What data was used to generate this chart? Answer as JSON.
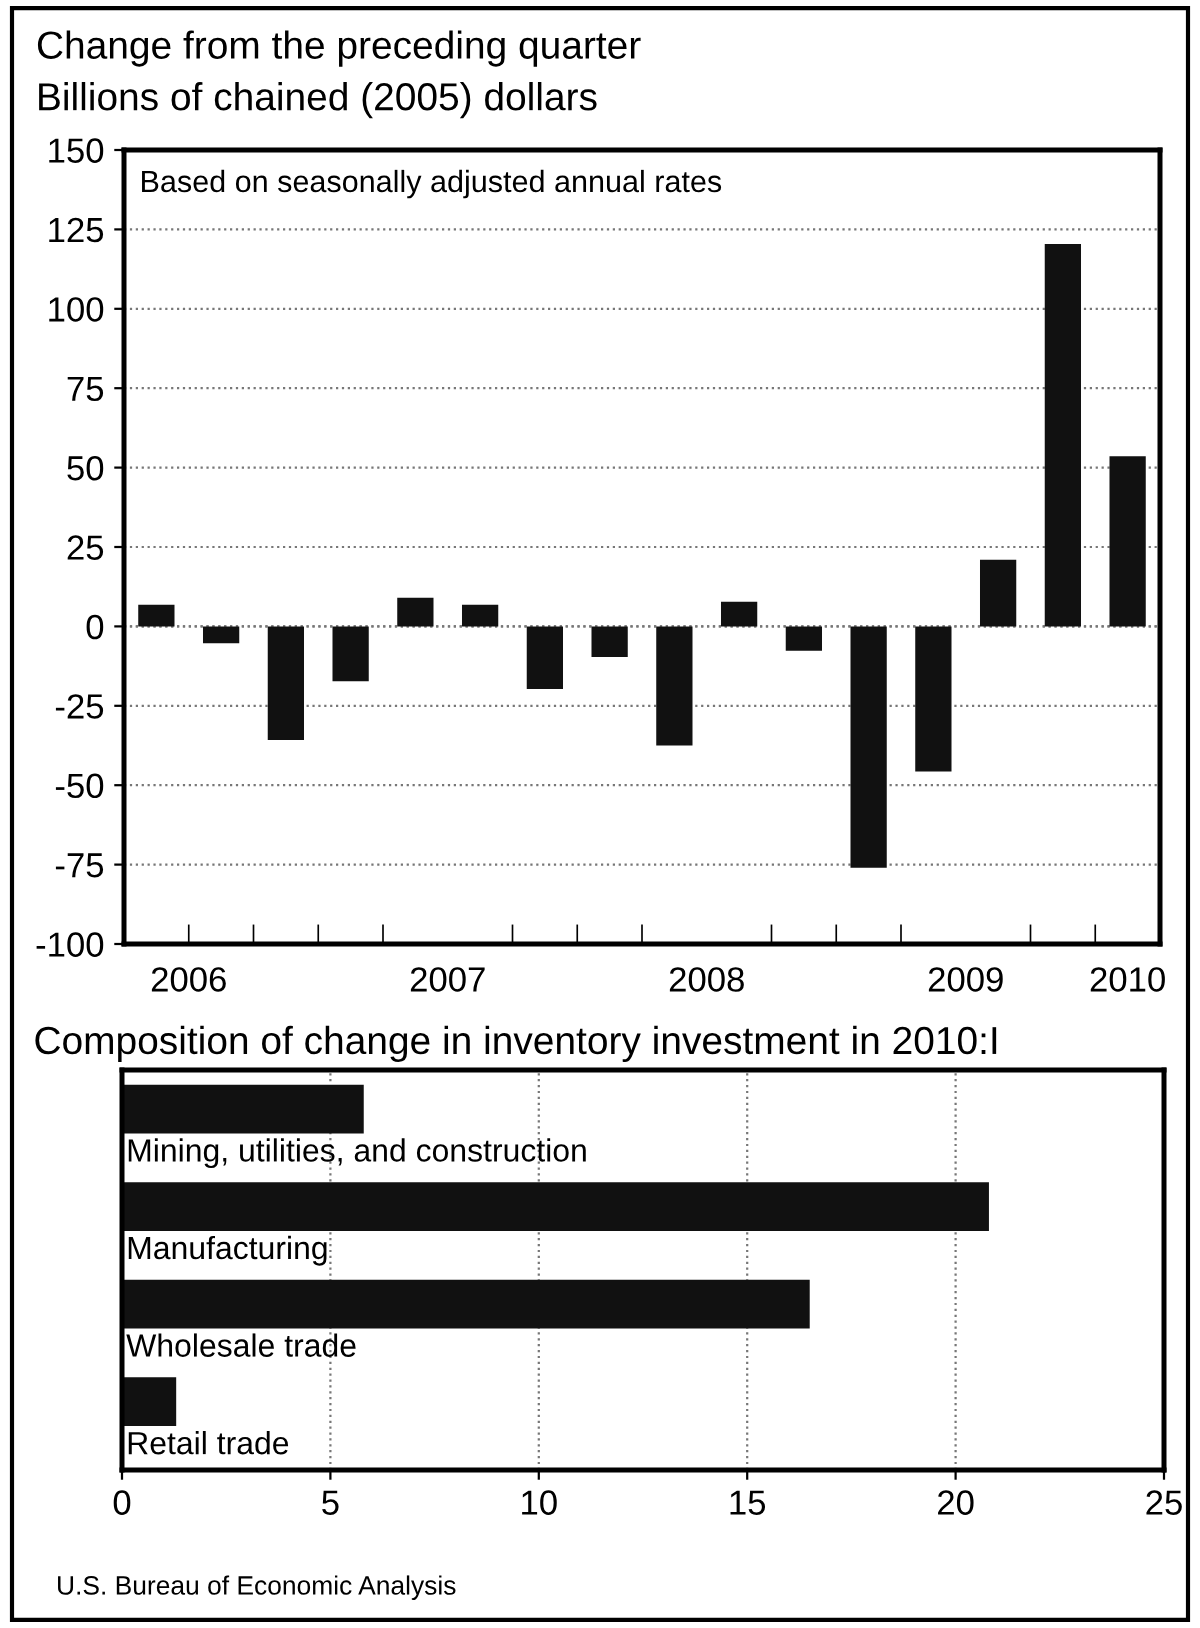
{
  "chart_data": [
    {
      "type": "bar",
      "title": "Change from the preceding quarter",
      "subtitle": "Billions of chained (2005) dollars",
      "annotations": [
        "Based on seasonally adjusted annual rates"
      ],
      "x": [
        2006.375,
        2006.625,
        2006.875,
        2007.125,
        2007.375,
        2007.625,
        2007.875,
        2008.125,
        2008.375,
        2008.625,
        2008.875,
        2009.125,
        2009.375,
        2009.625,
        2009.875,
        2010.125
      ],
      "values": [
        6.8,
        -5.3,
        -35.8,
        -17.3,
        9,
        6.8,
        -19.7,
        -9.6,
        -37.5,
        7.8,
        -7.7,
        -76,
        -45.7,
        21,
        120.4,
        53.6
      ],
      "color": "#111111",
      "xlim": [
        2006.25,
        2010.25
      ],
      "xticks": [
        {
          "value": 2006.5,
          "label": "2006"
        },
        {
          "value": 2007.5,
          "label": "2007"
        },
        {
          "value": 2008.5,
          "label": "2008"
        },
        {
          "value": 2009.5,
          "label": "2009"
        },
        {
          "value": 2010.125,
          "label": "2010"
        },
        {
          "value": 2006.5,
          "label": null
        },
        {
          "value": 2006.75,
          "label": null
        },
        {
          "value": 2007,
          "label": null
        },
        {
          "value": 2007.25,
          "label": null
        },
        {
          "value": 2007.75,
          "label": null
        },
        {
          "value": 2008,
          "label": null
        },
        {
          "value": 2008.25,
          "label": null
        },
        {
          "value": 2008.75,
          "label": null
        },
        {
          "value": 2009,
          "label": null
        },
        {
          "value": 2009.25,
          "label": null
        },
        {
          "value": 2009.75,
          "label": null
        },
        {
          "value": 2010,
          "label": null
        }
      ],
      "ylim": [
        -100,
        150
      ],
      "yticks": [
        -100,
        -75,
        -50,
        -25,
        0,
        25,
        50,
        75,
        100,
        125,
        150
      ],
      "grid": "y"
    },
    {
      "type": "bar",
      "orientation": "horizontal",
      "title": "Composition of change in inventory investment in 2010:I",
      "annotations": [
        "U.S. Bureau of Economic Analysis"
      ],
      "categories": [
        "Mining, utilities, and construction",
        "Manufacturing",
        "Wholesale trade",
        "Retail trade"
      ],
      "values": [
        5.8,
        20.8,
        16.5,
        1.3
      ],
      "color": "#111111",
      "xlim": [
        0,
        25
      ],
      "xticks": [
        0,
        5,
        10,
        15,
        20,
        25
      ],
      "grid": "x",
      "tick_labels": "x"
    }
  ]
}
